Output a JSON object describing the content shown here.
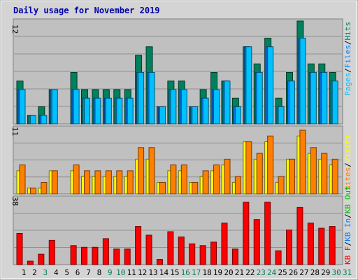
{
  "title": "Daily usage for November 2019",
  "colors": {
    "outer_bg": "#d4d4d4",
    "panel_bg": "#c0c0c0",
    "grid": "#909090",
    "title": "#0000aa",
    "hits": "#00805c",
    "files": "#0080ff",
    "pages": "#00c0ff",
    "visits": "#ffff00",
    "sites": "#ff8000",
    "kb_in": "#0080ff",
    "kb_out": "#00c000",
    "kbf": "#ff0000",
    "slash": "#000000",
    "weekend": "#00805c",
    "weekday": "#000000"
  },
  "chart_data": [
    {
      "type": "bar",
      "panel": "hits_files_pages",
      "ymax_label": "12",
      "ylim": [
        0,
        12
      ],
      "legend": [
        {
          "label": "Pages",
          "color": "#00c0ff"
        },
        {
          "label": "Files",
          "color": "#0080ff"
        },
        {
          "label": "Hits",
          "color": "#00805c"
        }
      ],
      "categories": [
        "1",
        "2",
        "3",
        "4",
        "5",
        "6",
        "7",
        "8",
        "9",
        "10",
        "11",
        "12",
        "13",
        "14",
        "15",
        "16",
        "17",
        "18",
        "19",
        "20",
        "21",
        "22",
        "23",
        "24",
        "25",
        "26",
        "27",
        "28",
        "29",
        "30",
        "31"
      ],
      "series": [
        {
          "name": "Hits",
          "values": [
            5,
            1,
            2,
            4,
            0,
            6,
            4,
            4,
            4,
            4,
            4,
            8,
            9,
            2,
            5,
            5,
            2,
            4,
            6,
            5,
            3,
            9,
            7,
            10,
            3,
            6,
            12,
            7,
            7,
            6,
            0
          ]
        },
        {
          "name": "Files",
          "values": [
            4,
            1,
            1,
            4,
            0,
            4,
            3,
            3,
            3,
            3,
            3,
            6,
            6,
            2,
            4,
            4,
            2,
            3,
            4,
            5,
            2,
            9,
            6,
            9,
            2,
            5,
            10,
            6,
            6,
            5,
            0
          ]
        },
        {
          "name": "Pages",
          "values": [
            4,
            1,
            1,
            4,
            0,
            4,
            3,
            3,
            3,
            3,
            3,
            6,
            6,
            2,
            4,
            4,
            2,
            3,
            4,
            5,
            2,
            9,
            6,
            9,
            2,
            5,
            10,
            6,
            6,
            5,
            0
          ]
        }
      ]
    },
    {
      "type": "bar",
      "panel": "visits_sites",
      "ymax_label": "11",
      "ylim": [
        0,
        11
      ],
      "legend": [
        {
          "label": "Visits",
          "color": "#ffff00"
        },
        {
          "label": "Sites",
          "color": "#ff8000"
        }
      ],
      "categories": [
        "1",
        "2",
        "3",
        "4",
        "5",
        "6",
        "7",
        "8",
        "9",
        "10",
        "11",
        "12",
        "13",
        "14",
        "15",
        "16",
        "17",
        "18",
        "19",
        "20",
        "21",
        "22",
        "23",
        "24",
        "25",
        "26",
        "27",
        "28",
        "29",
        "30",
        "31"
      ],
      "series": [
        {
          "name": "Visits",
          "values": [
            4,
            1,
            1,
            4,
            0,
            4,
            3,
            3,
            3,
            3,
            3,
            6,
            6,
            2,
            4,
            4,
            2,
            3,
            4,
            5,
            2,
            9,
            6,
            9,
            2,
            6,
            10,
            7,
            6,
            5,
            0
          ]
        },
        {
          "name": "Sites",
          "values": [
            5,
            1,
            2,
            4,
            0,
            5,
            4,
            4,
            4,
            4,
            4,
            8,
            8,
            2,
            5,
            5,
            2,
            4,
            5,
            6,
            3,
            9,
            7,
            10,
            3,
            6,
            11,
            8,
            7,
            6,
            0
          ]
        }
      ]
    },
    {
      "type": "bar",
      "panel": "kbytes",
      "ymax_label": "38",
      "ylim": [
        0,
        38
      ],
      "legend": [
        {
          "label": "KB F",
          "color": "#ff0000"
        },
        {
          "label": "KB In",
          "color": "#0080ff"
        },
        {
          "label": "KB Out",
          "color": "#00c000"
        }
      ],
      "categories": [
        "1",
        "2",
        "3",
        "4",
        "5",
        "6",
        "7",
        "8",
        "9",
        "10",
        "11",
        "12",
        "13",
        "14",
        "15",
        "16",
        "17",
        "18",
        "19",
        "20",
        "21",
        "22",
        "23",
        "24",
        "25",
        "26",
        "27",
        "28",
        "29",
        "30",
        "31"
      ],
      "series": [
        {
          "name": "KB F",
          "values": [
            18,
            2,
            6,
            14,
            0,
            11,
            10,
            10,
            15,
            9,
            9,
            22,
            17,
            3,
            19,
            16,
            12,
            11,
            13,
            24,
            9,
            36,
            26,
            36,
            8,
            20,
            33,
            24,
            21,
            22,
            0
          ]
        }
      ]
    }
  ],
  "x_labels": [
    {
      "text": "1",
      "weekend": false
    },
    {
      "text": "2",
      "weekend": false
    },
    {
      "text": "3",
      "weekend": true
    },
    {
      "text": "4",
      "weekend": false
    },
    {
      "text": "5",
      "weekend": false
    },
    {
      "text": "6",
      "weekend": false
    },
    {
      "text": "7",
      "weekend": false
    },
    {
      "text": "8",
      "weekend": false
    },
    {
      "text": "9",
      "weekend": true
    },
    {
      "text": "10",
      "weekend": true
    },
    {
      "text": "11",
      "weekend": false
    },
    {
      "text": "12",
      "weekend": false
    },
    {
      "text": "13",
      "weekend": false
    },
    {
      "text": "14",
      "weekend": false
    },
    {
      "text": "15",
      "weekend": false
    },
    {
      "text": "16",
      "weekend": true
    },
    {
      "text": "17",
      "weekend": true
    },
    {
      "text": "18",
      "weekend": false
    },
    {
      "text": "19",
      "weekend": false
    },
    {
      "text": "20",
      "weekend": false
    },
    {
      "text": "21",
      "weekend": false
    },
    {
      "text": "22",
      "weekend": false
    },
    {
      "text": "23",
      "weekend": true
    },
    {
      "text": "24",
      "weekend": true
    },
    {
      "text": "25",
      "weekend": false
    },
    {
      "text": "26",
      "weekend": false
    },
    {
      "text": "27",
      "weekend": false
    },
    {
      "text": "28",
      "weekend": false
    },
    {
      "text": "29",
      "weekend": false
    },
    {
      "text": "30",
      "weekend": true
    },
    {
      "text": "31",
      "weekend": true
    }
  ]
}
